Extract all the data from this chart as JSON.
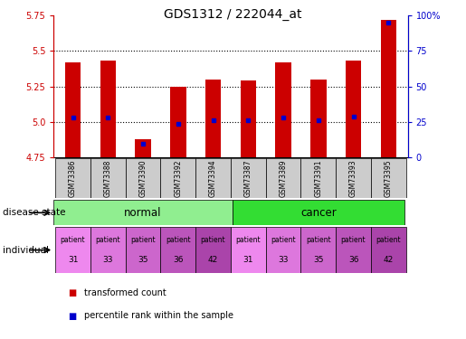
{
  "title": "GDS1312 / 222044_at",
  "samples": [
    "GSM73386",
    "GSM73388",
    "GSM73390",
    "GSM73392",
    "GSM73394",
    "GSM73387",
    "GSM73389",
    "GSM73391",
    "GSM73393",
    "GSM73395"
  ],
  "transformed_count": [
    5.42,
    5.43,
    4.88,
    5.25,
    5.3,
    5.29,
    5.42,
    5.3,
    5.43,
    5.72
  ],
  "percentile_rank": [
    28,
    28,
    10,
    24,
    26,
    26,
    28,
    26,
    29,
    95
  ],
  "ymin": 4.75,
  "ymax": 5.75,
  "yticks": [
    4.75,
    5.0,
    5.25,
    5.5,
    5.75
  ],
  "right_yticks": [
    0,
    25,
    50,
    75,
    100
  ],
  "normal_color": "#90EE90",
  "cancer_color": "#33DD33",
  "individual_bg_colors": [
    "#EE88EE",
    "#DD77DD",
    "#CC66CC",
    "#BB55BB",
    "#AA44AA",
    "#EE88EE",
    "#DD77DD",
    "#CC66CC",
    "#BB55BB",
    "#AA44AA"
  ],
  "bar_color": "#CC0000",
  "blue_color": "#0000CC",
  "sample_box_color": "#CCCCCC",
  "left_label_color": "#CC0000",
  "right_label_color": "#0000CC"
}
